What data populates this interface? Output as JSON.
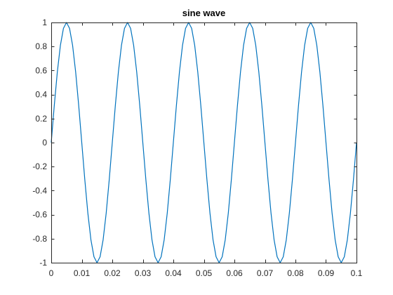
{
  "chart_data": {
    "type": "line",
    "title": "sine wave",
    "xlabel": "",
    "ylabel": "",
    "xlim": [
      0,
      0.1
    ],
    "ylim": [
      -1,
      1
    ],
    "x_ticks": [
      0,
      0.01,
      0.02,
      0.03,
      0.04,
      0.05,
      0.06,
      0.07,
      0.08,
      0.09,
      0.1
    ],
    "x_tick_labels": [
      "0",
      "0.01",
      "0.02",
      "0.03",
      "0.04",
      "0.05",
      "0.06",
      "0.07",
      "0.08",
      "0.09",
      "0.1"
    ],
    "y_ticks": [
      -1,
      -0.8,
      -0.6,
      -0.4,
      -0.2,
      0,
      0.2,
      0.4,
      0.6,
      0.8,
      1
    ],
    "y_tick_labels": [
      "-1",
      "-0.8",
      "-0.6",
      "-0.4",
      "-0.2",
      "0",
      "0.2",
      "0.4",
      "0.6",
      "0.8",
      "1"
    ],
    "grid": false,
    "box": true,
    "colors": {
      "line": "#0072BD",
      "axes": "#262626"
    },
    "series": [
      {
        "function": "sin(2*pi*50*t)",
        "frequency_hz": 50,
        "amplitude": 1,
        "sample_step": 0.001,
        "x": [
          0,
          0.001,
          0.002,
          0.003,
          0.004,
          0.005,
          0.006,
          0.007,
          0.008,
          0.009,
          0.01,
          0.011,
          0.012,
          0.013,
          0.014,
          0.015,
          0.016,
          0.017,
          0.018,
          0.019,
          0.02,
          0.021,
          0.022,
          0.023,
          0.024,
          0.025,
          0.026,
          0.027,
          0.028,
          0.029,
          0.03,
          0.031,
          0.032,
          0.033,
          0.034,
          0.035,
          0.036,
          0.037,
          0.038,
          0.039,
          0.04,
          0.041,
          0.042,
          0.043,
          0.044,
          0.045,
          0.046,
          0.047,
          0.048,
          0.049,
          0.05,
          0.051,
          0.052,
          0.053,
          0.054,
          0.055,
          0.056,
          0.057,
          0.058,
          0.059,
          0.06,
          0.061,
          0.062,
          0.063,
          0.064,
          0.065,
          0.066,
          0.067,
          0.068,
          0.069,
          0.07,
          0.071,
          0.072,
          0.073,
          0.074,
          0.075,
          0.076,
          0.077,
          0.078,
          0.079,
          0.08,
          0.081,
          0.082,
          0.083,
          0.084,
          0.085,
          0.086,
          0.087,
          0.088,
          0.089,
          0.09,
          0.091,
          0.092,
          0.093,
          0.094,
          0.095,
          0.096,
          0.097,
          0.098,
          0.099,
          0.1
        ],
        "y": [
          0,
          0.309,
          0.588,
          0.809,
          0.951,
          1,
          0.951,
          0.809,
          0.588,
          0.309,
          0,
          -0.309,
          -0.588,
          -0.809,
          -0.951,
          -1,
          -0.951,
          -0.809,
          -0.588,
          -0.309,
          0,
          0.309,
          0.588,
          0.809,
          0.951,
          1,
          0.951,
          0.809,
          0.588,
          0.309,
          0,
          -0.309,
          -0.588,
          -0.809,
          -0.951,
          -1,
          -0.951,
          -0.809,
          -0.588,
          -0.309,
          0,
          0.309,
          0.588,
          0.809,
          0.951,
          1,
          0.951,
          0.809,
          0.588,
          0.309,
          0,
          -0.309,
          -0.588,
          -0.809,
          -0.951,
          -1,
          -0.951,
          -0.809,
          -0.588,
          -0.309,
          0,
          0.309,
          0.588,
          0.809,
          0.951,
          1,
          0.951,
          0.809,
          0.588,
          0.309,
          0,
          -0.309,
          -0.588,
          -0.809,
          -0.951,
          -1,
          -0.951,
          -0.809,
          -0.588,
          -0.309,
          0,
          0.309,
          0.588,
          0.809,
          0.951,
          1,
          0.951,
          0.809,
          0.588,
          0.309,
          0,
          -0.309,
          -0.588,
          -0.809,
          -0.951,
          -1,
          -0.951,
          -0.809,
          -0.588,
          -0.309,
          0
        ]
      }
    ]
  }
}
